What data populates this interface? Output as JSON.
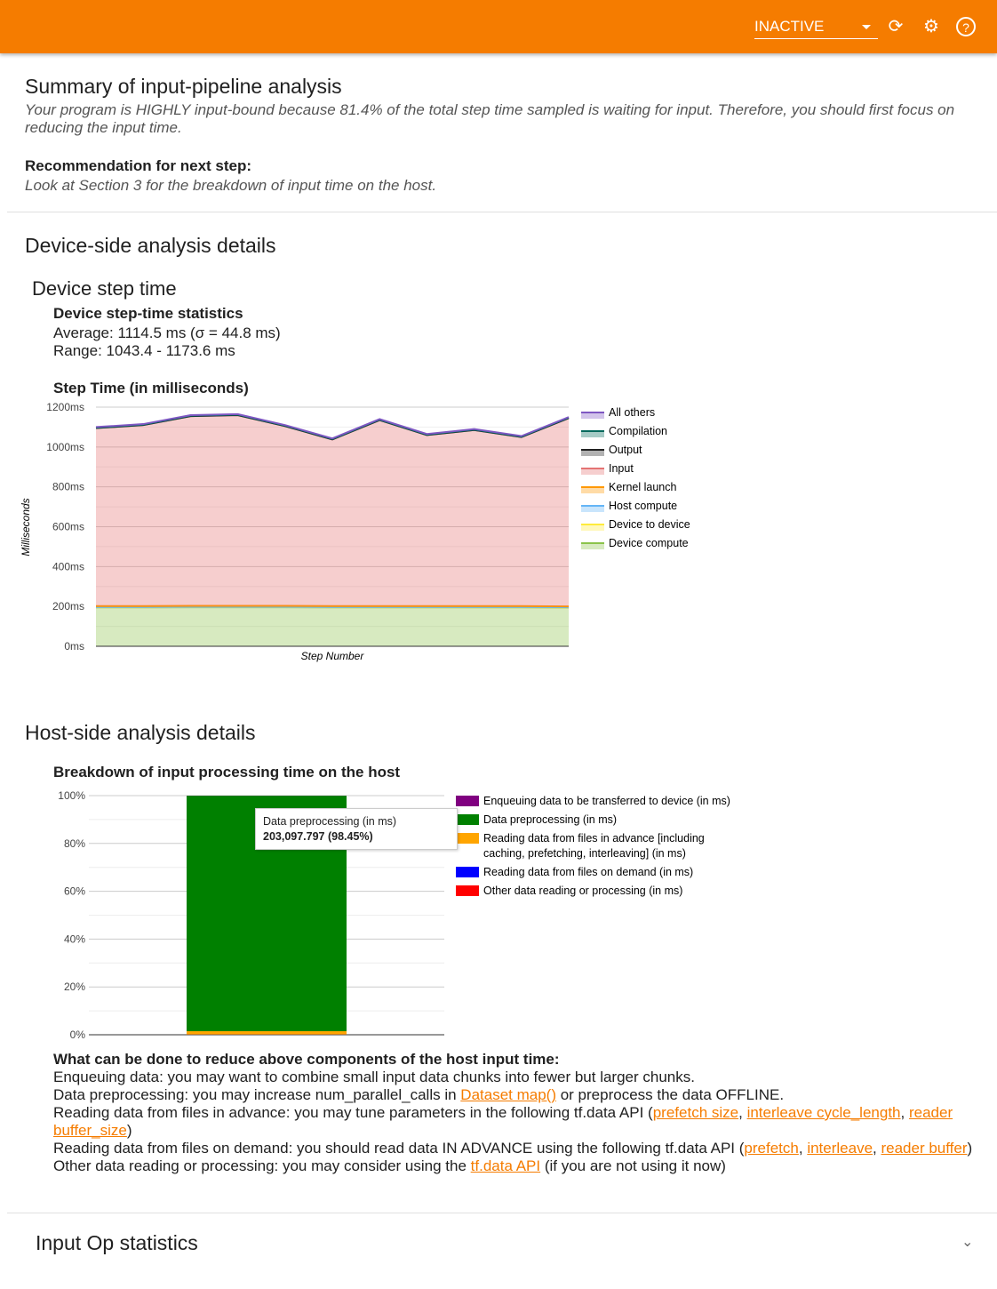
{
  "header": {
    "status_select": "INACTIVE",
    "icons": [
      "refresh-icon",
      "settings-icon",
      "help-icon"
    ]
  },
  "summary": {
    "title": "Summary of input-pipeline analysis",
    "text": "Your program is HIGHLY input-bound because 81.4% of the total step time sampled is waiting for input. Therefore, you should first focus on reducing the input time.",
    "rec_label": "Recommendation for next step:",
    "rec_text": "Look at Section 3 for the breakdown of input time on the host."
  },
  "device": {
    "title": "Device-side analysis details",
    "subtitle": "Device step time",
    "stats_title": "Device step-time statistics",
    "average": "Average: 1114.5 ms (σ = 44.8 ms)",
    "range": "Range: 1043.4 - 1173.6 ms",
    "chart_title": "Step Time (in milliseconds)"
  },
  "host": {
    "title": "Host-side analysis details",
    "chart_title": "Breakdown of input processing time on the host",
    "tooltip": {
      "label": "Data preprocessing (in ms)",
      "value": "203,097.797 (98.45%)"
    },
    "advice_title": "What can be done to reduce above components of the host input time:",
    "advice": {
      "l1": "Enqueuing data: you may want to combine small input data chunks into fewer but larger chunks.",
      "l2a": "Data preprocessing: you may increase num_parallel_calls in ",
      "l2link": "Dataset map()",
      "l2b": " or preprocess the data OFFLINE.",
      "l3a": "Reading data from files in advance: you may tune parameters in the following tf.data API (",
      "l3l1": "prefetch size",
      "l3l2": "interleave cycle_length",
      "l3l3": "reader buffer_size",
      "l3b": ")",
      "l4a": "Reading data from files on demand: you should read data IN ADVANCE using the following tf.data API (",
      "l4l1": "prefetch",
      "l4l2": "interleave",
      "l4l3": "reader buffer",
      "l4b": ")",
      "l5a": "Other data reading or processing: you may consider using the ",
      "l5link": "tf.data API",
      "l5b": " (if you are not using it now)"
    }
  },
  "input_op": {
    "title": "Input Op statistics"
  },
  "chart_data": [
    {
      "type": "area",
      "title": "Step Time (in milliseconds)",
      "xlabel": "Step Number",
      "ylabel": "Milliseconds",
      "ylim": [
        0,
        1200
      ],
      "yticks": [
        "0ms",
        "200ms",
        "400ms",
        "600ms",
        "800ms",
        "1000ms",
        "1200ms"
      ],
      "stacked": true,
      "legend": "right",
      "series": [
        {
          "name": "Device compute",
          "color": "#8bc34a",
          "values": [
            195,
            195,
            196,
            196,
            196,
            195,
            195,
            195,
            195,
            195,
            194
          ]
        },
        {
          "name": "Device to device",
          "color": "#ffeb3b",
          "values": [
            1,
            1,
            1,
            1,
            1,
            1,
            1,
            1,
            1,
            1,
            1
          ]
        },
        {
          "name": "Host compute",
          "color": "#64b5f6",
          "values": [
            1,
            1,
            1,
            1,
            1,
            1,
            1,
            1,
            1,
            1,
            1
          ]
        },
        {
          "name": "Kernel launch",
          "color": "#ff9800",
          "values": [
            5,
            5,
            5,
            5,
            5,
            5,
            5,
            5,
            5,
            5,
            4
          ]
        },
        {
          "name": "Input",
          "color": "#e57373",
          "values": [
            893,
            908,
            952,
            957,
            902,
            836,
            933,
            858,
            883,
            848,
            945
          ]
        },
        {
          "name": "Output",
          "color": "#212121",
          "values": [
            0,
            0,
            0,
            0,
            0,
            0,
            0,
            0,
            0,
            0,
            0
          ]
        },
        {
          "name": "Compilation",
          "color": "#00695c",
          "values": [
            2,
            2,
            2,
            2,
            2,
            2,
            2,
            2,
            2,
            2,
            2
          ]
        },
        {
          "name": "All others",
          "color": "#7e57c2",
          "values": [
            3,
            3,
            3,
            3,
            3,
            3,
            3,
            3,
            3,
            3,
            3
          ]
        }
      ]
    },
    {
      "type": "bar",
      "stacked": "percent",
      "ylim": [
        0,
        100
      ],
      "yticks": [
        "0%",
        "20%",
        "40%",
        "60%",
        "80%",
        "100%"
      ],
      "legend": "right",
      "series": [
        {
          "name": "Enqueuing data to be transferred to device (in ms)",
          "color": "#800080",
          "values": [
            0.05
          ]
        },
        {
          "name": "Data preprocessing (in ms)",
          "color": "#008000",
          "values": [
            98.45
          ]
        },
        {
          "name": "Reading data from files in advance [including caching, prefetching, interleaving] (in ms)",
          "color": "#ffa500",
          "values": [
            1.4
          ]
        },
        {
          "name": "Reading data from files on demand (in ms)",
          "color": "#0000ff",
          "values": [
            0.05
          ]
        },
        {
          "name": "Other data reading or processing (in ms)",
          "color": "#ff0000",
          "values": [
            0.05
          ]
        }
      ]
    }
  ]
}
